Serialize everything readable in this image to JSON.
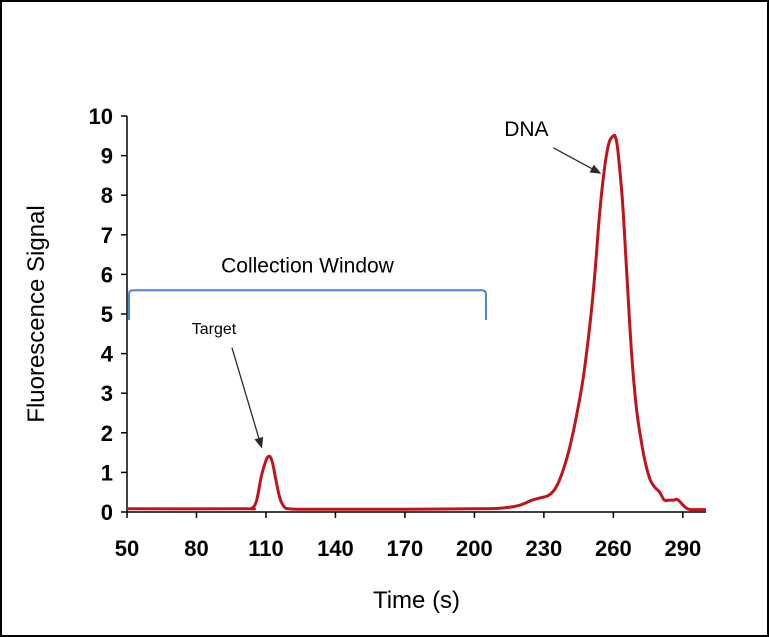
{
  "chart_data": {
    "type": "line",
    "title": "",
    "xlabel": "Time (s)",
    "ylabel": "Fluorescence Signal",
    "xlim": [
      50,
      300
    ],
    "ylim": [
      0,
      10
    ],
    "xticks": [
      50,
      80,
      110,
      140,
      170,
      200,
      230,
      260,
      290
    ],
    "yticks": [
      0,
      1,
      2,
      3,
      4,
      5,
      6,
      7,
      8,
      9,
      10
    ],
    "grid": false,
    "series": [
      {
        "color": "#c0141b",
        "x": [
          50,
          100,
          104,
          106,
          108,
          110,
          111,
          112,
          113,
          114,
          116,
          118,
          120,
          124,
          140,
          170,
          200,
          210,
          215,
          220,
          225,
          228,
          232,
          235,
          238,
          241,
          244,
          247,
          250,
          252,
          254,
          256,
          258,
          260,
          261,
          262,
          264,
          266,
          268,
          270,
          272,
          274,
          276,
          278,
          280,
          282,
          284,
          286,
          287,
          288,
          290,
          292,
          294,
          300
        ],
        "y": [
          0.08,
          0.08,
          0.1,
          0.3,
          0.9,
          1.3,
          1.4,
          1.38,
          1.2,
          0.9,
          0.35,
          0.12,
          0.08,
          0.07,
          0.07,
          0.07,
          0.08,
          0.09,
          0.12,
          0.18,
          0.3,
          0.35,
          0.42,
          0.6,
          1.0,
          1.6,
          2.4,
          3.4,
          4.8,
          6.0,
          7.5,
          8.6,
          9.3,
          9.5,
          9.45,
          9.1,
          7.8,
          5.8,
          3.9,
          2.6,
          1.8,
          1.2,
          0.8,
          0.62,
          0.5,
          0.3,
          0.3,
          0.3,
          0.32,
          0.3,
          0.18,
          0.08,
          0.06,
          0.06
        ]
      }
    ],
    "annotations": [
      {
        "text": "DNA",
        "x": 260,
        "y": 9.5
      },
      {
        "text": "Target",
        "x": 110,
        "y": 1.4
      },
      {
        "text": "Collection Window",
        "x_from": 50,
        "x_to": 205,
        "y": 5.6,
        "color": "#4a86d6"
      }
    ],
    "arrow_color": "#2b2b2b"
  }
}
